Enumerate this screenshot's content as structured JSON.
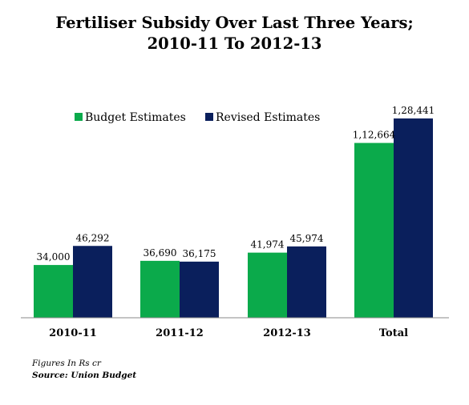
{
  "chart_data": {
    "type": "bar",
    "title_line1": "Fertiliser Subsidy Over Last Three Years;",
    "title_line2": "2010-11 To 2012-13",
    "categories": [
      "2010-11",
      "2011-12",
      "2012-13",
      "Total"
    ],
    "series": [
      {
        "name": "Budget Estimates",
        "color": "#0BAA4B",
        "values": [
          34000,
          36690,
          41974,
          112664
        ],
        "labels": [
          "34,000",
          "36,690",
          "41,974",
          "1,12,664"
        ]
      },
      {
        "name": "Revised Estimates",
        "color": "#0A1F5C",
        "values": [
          46292,
          36175,
          45974,
          128441
        ],
        "labels": [
          "46,292",
          "36,175",
          "45,974",
          "1,28,441"
        ]
      }
    ],
    "ylim": [
      0,
      128441
    ],
    "grid": false,
    "legend_position": "top-left"
  },
  "footnote": {
    "units": "Figures In Rs cr",
    "source": "Source: Union Budget"
  }
}
